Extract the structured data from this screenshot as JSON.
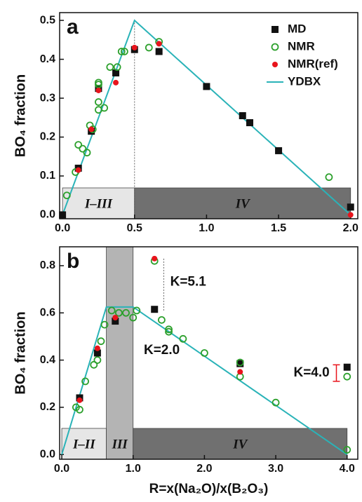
{
  "chart_data": [
    {
      "type": "scatter",
      "panel_label": "a",
      "y_label": "BO₄ fraction",
      "xlim": [
        -0.02,
        2.05
      ],
      "ylim": [
        -0.01,
        0.52
      ],
      "xticks": [
        {
          "value": 0,
          "label": "0.0"
        },
        0.5,
        {
          "value": 1,
          "label": "1.0"
        },
        1.5,
        {
          "value": 2,
          "label": "2.0"
        }
      ],
      "yticks": [
        {
          "value": 0,
          "label": "0.0"
        },
        0.1,
        0.2,
        0.3,
        0.4,
        0.5
      ],
      "legend": "upper right",
      "regions": [
        {
          "label": "I–III",
          "range": [
            0,
            0.5
          ],
          "color": "#e6e6e6"
        },
        {
          "label": "IV",
          "range": [
            0.5,
            2.0
          ],
          "color": "#707070"
        }
      ],
      "reference_lines": [
        {
          "x": 0.5,
          "y": [
            0,
            0.5
          ]
        }
      ],
      "series": [
        {
          "name": "MD",
          "marker": "square",
          "color": "#111111",
          "x": [
            0,
            0.11,
            0.2,
            0.25,
            0.37,
            0.5,
            0.67,
            1.0,
            1.25,
            1.3,
            1.5,
            2.0
          ],
          "values": [
            0,
            0.12,
            0.215,
            0.325,
            0.365,
            0.425,
            0.42,
            0.33,
            0.255,
            0.237,
            0.165,
            0.02
          ]
        },
        {
          "name": "NMR",
          "marker": "open-circle",
          "color": "#2ca02c",
          "x": [
            0.03,
            0.09,
            0.11,
            0.14,
            0.17,
            0.19,
            0.21,
            0.25,
            0.25,
            0.25,
            0.25,
            0.29,
            0.33,
            0.38,
            0.41,
            0.43,
            0.6,
            0.67,
            1.85
          ],
          "values": [
            0.05,
            0.11,
            0.18,
            0.17,
            0.16,
            0.23,
            0.22,
            0.27,
            0.29,
            0.335,
            0.34,
            0.275,
            0.38,
            0.38,
            0.42,
            0.42,
            0.43,
            0.445,
            0.097
          ]
        },
        {
          "name": "NMR(ref)",
          "marker": "circle",
          "color": "#e8141c",
          "x": [
            0.11,
            0.2,
            0.25,
            0.37,
            0.5,
            0.67,
            2.0
          ],
          "values": [
            0.115,
            0.22,
            0.32,
            0.34,
            0.43,
            0.44,
            0.0
          ]
        },
        {
          "name": "YDBX",
          "marker": "line",
          "color": "#2ab3b8",
          "x": [
            0,
            0.5,
            2.0
          ],
          "values": [
            0,
            0.5,
            0
          ]
        }
      ]
    },
    {
      "type": "scatter",
      "panel_label": "b",
      "y_label": "BO₄ fraction",
      "x_label": "R=x(Na₂O)/x(B₂O₃)",
      "xlim": [
        -0.03,
        4.15
      ],
      "ylim": [
        -0.02,
        0.88
      ],
      "xticks": [
        {
          "value": 0,
          "label": "0.0"
        },
        {
          "value": 1,
          "label": "1.0"
        },
        {
          "value": 2,
          "label": "2.0"
        },
        {
          "value": 3,
          "label": "3.0"
        },
        {
          "value": 4,
          "label": "4.0"
        }
      ],
      "yticks": [
        {
          "value": 0,
          "label": "0.0"
        },
        0.2,
        0.4,
        0.6,
        0.8
      ],
      "regions": [
        {
          "label": "I–II",
          "range": [
            0,
            0.625
          ],
          "color": "#e6e6e6"
        },
        {
          "label": "III",
          "range": [
            0.625,
            1.0
          ],
          "color": "#b4b4b4",
          "full_height": true
        },
        {
          "label": "IV",
          "range": [
            1.0,
            4.0
          ],
          "color": "#707070"
        }
      ],
      "reference_lines": [
        {
          "x": 1.43,
          "y": [
            0.61,
            0.83
          ]
        }
      ],
      "error_bars": [
        {
          "x": 3.85,
          "y": [
            0.31,
            0.38
          ],
          "color": "#e8141c"
        }
      ],
      "annotations": [
        "K=5.1",
        "K=2.0",
        "K=4.0"
      ],
      "series": [
        {
          "name": "MD",
          "marker": "square",
          "color": "#111111",
          "x": [
            0.25,
            0.5,
            0.75,
            1.3,
            2.5,
            4.0
          ],
          "values": [
            0.24,
            0.43,
            0.565,
            0.615,
            0.385,
            0.37
          ]
        },
        {
          "name": "NMR",
          "marker": "open-circle",
          "color": "#2ca02c",
          "x": [
            0.2,
            0.25,
            0.33,
            0.45,
            0.5,
            0.55,
            0.6,
            0.7,
            0.8,
            0.9,
            1.0,
            1.05,
            1.3,
            1.4,
            1.5,
            1.5,
            1.7,
            2.0,
            2.5,
            2.5,
            3.0,
            4.0,
            4.0
          ],
          "values": [
            0.2,
            0.19,
            0.31,
            0.38,
            0.4,
            0.48,
            0.55,
            0.61,
            0.6,
            0.6,
            0.58,
            0.61,
            0.82,
            0.57,
            0.53,
            0.52,
            0.49,
            0.43,
            0.39,
            0.33,
            0.22,
            0.02,
            0.33
          ]
        },
        {
          "name": "NMR(ref)",
          "marker": "circle",
          "color": "#e8141c",
          "x": [
            0.25,
            0.5,
            0.75,
            1.3,
            2.5
          ],
          "values": [
            0.23,
            0.45,
            0.58,
            0.83,
            0.35
          ]
        },
        {
          "name": "YDBX",
          "marker": "line",
          "color": "#2ab3b8",
          "x": [
            0,
            0.625,
            1.0,
            4.0
          ],
          "values": [
            0,
            0.625,
            0.625,
            0
          ]
        }
      ]
    }
  ]
}
